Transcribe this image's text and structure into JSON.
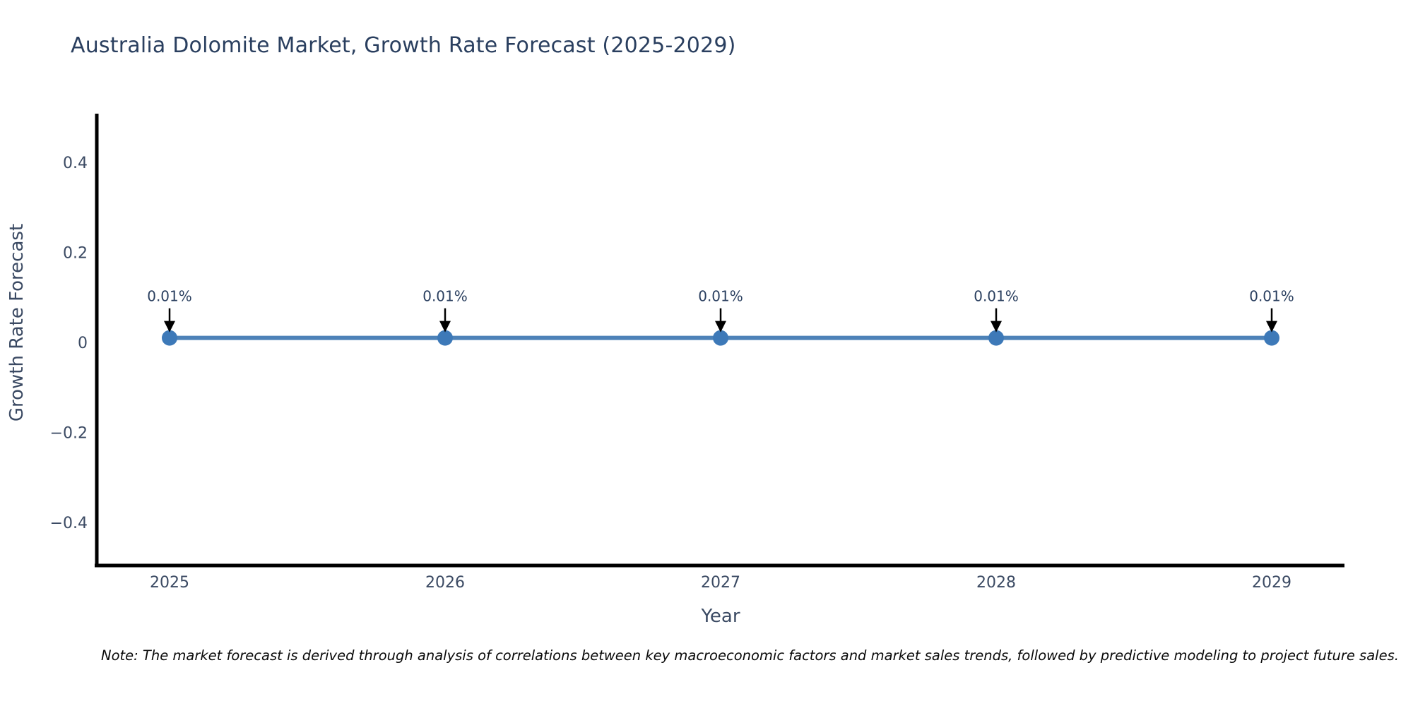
{
  "title": "Australia Dolomite Market, Growth Rate Forecast (2025-2029)",
  "note": "Note: The market forecast is derived through analysis of correlations between key macroeconomic factors and market sales trends, followed by predictive modeling to project future sales.",
  "chart_data": {
    "type": "line",
    "title": "Australia Dolomite Market, Growth Rate Forecast (2025-2029)",
    "xlabel": "Year",
    "ylabel": "Growth Rate Forecast",
    "x": [
      "2025",
      "2026",
      "2027",
      "2028",
      "2029"
    ],
    "series": [
      {
        "name": "Growth Rate Forecast",
        "values": [
          0.01,
          0.01,
          0.01,
          0.01,
          0.01
        ]
      }
    ],
    "point_labels": [
      "0.01%",
      "0.01%",
      "0.01%",
      "0.01%",
      "0.01%"
    ],
    "yticks": [
      0.4,
      0.2,
      0,
      -0.2,
      -0.4
    ],
    "ylim": [
      -0.5,
      0.51
    ],
    "grid": false,
    "legend_position": "none",
    "annotation_arrows": true,
    "colors": {
      "line": "#4d82b8",
      "marker": "#3d79b8",
      "axis": "#000000",
      "tick_text": "#3b4a63",
      "title_text": "#2a3f5f",
      "annotation_text": "#2a3f5f",
      "arrow": "#000000",
      "background": "#ffffff"
    }
  }
}
